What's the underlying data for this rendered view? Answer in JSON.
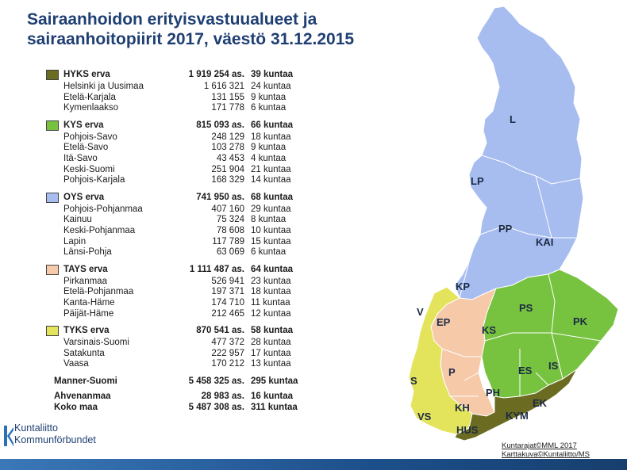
{
  "title": {
    "line1": "Sairaanhoidon erityisvastuualueet ja",
    "line2": "sairaanhoitopiirit 2017, väestö 31.12.2015"
  },
  "groups": [
    {
      "name": "HYKS erva",
      "population": "1 919 254 as.",
      "municipalities": "39 kuntaa",
      "color": "#6b6b22",
      "districts": [
        {
          "name": "Helsinki ja Uusimaa",
          "population": "1 616 321",
          "municipalities": "24 kuntaa"
        },
        {
          "name": "Etelä-Karjala",
          "population": "131 155",
          "municipalities": "9 kuntaa"
        },
        {
          "name": "Kymenlaakso",
          "population": "171 778",
          "municipalities": "6 kuntaa"
        }
      ]
    },
    {
      "name": "KYS erva",
      "population": "815 093 as.",
      "municipalities": "66 kuntaa",
      "color": "#77c23f",
      "districts": [
        {
          "name": "Pohjois-Savo",
          "population": "248 129",
          "municipalities": "18 kuntaa"
        },
        {
          "name": "Etelä-Savo",
          "population": "103 278",
          "municipalities": "9 kuntaa"
        },
        {
          "name": "Itä-Savo",
          "population": "43 453",
          "municipalities": "4 kuntaa"
        },
        {
          "name": "Keski-Suomi",
          "population": "251 904",
          "municipalities": "21 kuntaa"
        },
        {
          "name": "Pohjois-Karjala",
          "population": "168 329",
          "municipalities": "14 kuntaa"
        }
      ]
    },
    {
      "name": "OYS erva",
      "population": "741 950 as.",
      "municipalities": "68 kuntaa",
      "color": "#a7bdf0",
      "districts": [
        {
          "name": "Pohjois-Pohjanmaa",
          "population": "407 160",
          "municipalities": "29 kuntaa"
        },
        {
          "name": "Kainuu",
          "population": "75 324",
          "municipalities": "8 kuntaa"
        },
        {
          "name": "Keski-Pohjanmaa",
          "population": "78 608",
          "municipalities": "10 kuntaa"
        },
        {
          "name": "Lapin",
          "population": "117 789",
          "municipalities": "15 kuntaa"
        },
        {
          "name": "Länsi-Pohja",
          "population": "63 069",
          "municipalities": "6 kuntaa"
        }
      ]
    },
    {
      "name": "TAYS erva",
      "population": "1 111 487 as.",
      "municipalities": "64 kuntaa",
      "color": "#f6c9a9",
      "districts": [
        {
          "name": "Pirkanmaa",
          "population": "526 941",
          "municipalities": "23 kuntaa"
        },
        {
          "name": "Etelä-Pohjanmaa",
          "population": "197 371",
          "municipalities": "18 kuntaa"
        },
        {
          "name": "Kanta-Häme",
          "population": "174 710",
          "municipalities": "11 kuntaa"
        },
        {
          "name": "Päijät-Häme",
          "population": "212 465",
          "municipalities": "12 kuntaa"
        }
      ]
    },
    {
      "name": "TYKS erva",
      "population": "870 541 as.",
      "municipalities": "58 kuntaa",
      "color": "#e3e45c",
      "districts": [
        {
          "name": "Varsinais-Suomi",
          "population": "477 372",
          "municipalities": "28 kuntaa"
        },
        {
          "name": "Satakunta",
          "population": "222 957",
          "municipalities": "17 kuntaa"
        },
        {
          "name": "Vaasa",
          "population": "170 212",
          "municipalities": "13 kuntaa"
        }
      ]
    }
  ],
  "totals": [
    {
      "name": "Manner-Suomi",
      "population": "5 458 325 as.",
      "municipalities": "295 kuntaa"
    },
    {
      "name": "Ahvenanmaa",
      "population": "28 983 as.",
      "municipalities": "16 kuntaa"
    },
    {
      "name": "Koko maa",
      "population": "5 487 308 as.",
      "municipalities": "311 kuntaa"
    }
  ],
  "map_labels": {
    "L": "L",
    "LP": "LP",
    "PP": "PP",
    "KAI": "KAI",
    "KP": "KP",
    "PS": "PS",
    "PK": "PK",
    "EP": "EP",
    "KS": "KS",
    "V": "V",
    "P": "P",
    "ES": "ES",
    "IS": "IS",
    "S": "S",
    "PH": "PH",
    "KH": "KH",
    "EK": "EK",
    "VS": "VS",
    "KYM": "KYM",
    "HUS": "HUS"
  },
  "credits": {
    "line1": "Kuntarajat©MML 2017",
    "line2": "Karttakuva©Kuntaliitto/MS"
  },
  "logo": {
    "line1": "Kuntaliitto",
    "line2": "Kommunförbundet"
  },
  "colors": {
    "title": "#1f3f73",
    "border": "#ffffff"
  }
}
